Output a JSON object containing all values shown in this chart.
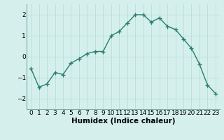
{
  "x": [
    0,
    1,
    2,
    3,
    4,
    5,
    6,
    7,
    8,
    9,
    10,
    11,
    12,
    13,
    14,
    15,
    16,
    17,
    18,
    19,
    20,
    21,
    22,
    23
  ],
  "y": [
    -0.55,
    -1.45,
    -1.3,
    -0.75,
    -0.85,
    -0.3,
    -0.1,
    0.15,
    0.25,
    0.25,
    1.0,
    1.2,
    1.6,
    2.0,
    2.0,
    1.65,
    1.85,
    1.45,
    1.3,
    0.85,
    0.4,
    -0.35,
    -1.35,
    -1.75
  ],
  "line_color": "#2a7d6b",
  "marker": "+",
  "marker_size": 4,
  "bg_color": "#d5f0ec",
  "grid_color": "#b8ddd8",
  "spine_color": "#7aaba5",
  "xlabel": "Humidex (Indice chaleur)",
  "ylim": [
    -2.5,
    2.5
  ],
  "xlim": [
    -0.5,
    23.5
  ],
  "yticks": [
    -2,
    -1,
    0,
    1,
    2
  ],
  "xtick_labels": [
    "0",
    "1",
    "2",
    "3",
    "4",
    "5",
    "6",
    "7",
    "8",
    "9",
    "10",
    "11",
    "12",
    "13",
    "14",
    "15",
    "16",
    "17",
    "18",
    "19",
    "20",
    "21",
    "22",
    "23"
  ],
  "xlabel_fontsize": 7.5,
  "tick_fontsize": 6.5,
  "line_width": 1.0,
  "marker_edge_width": 1.0
}
